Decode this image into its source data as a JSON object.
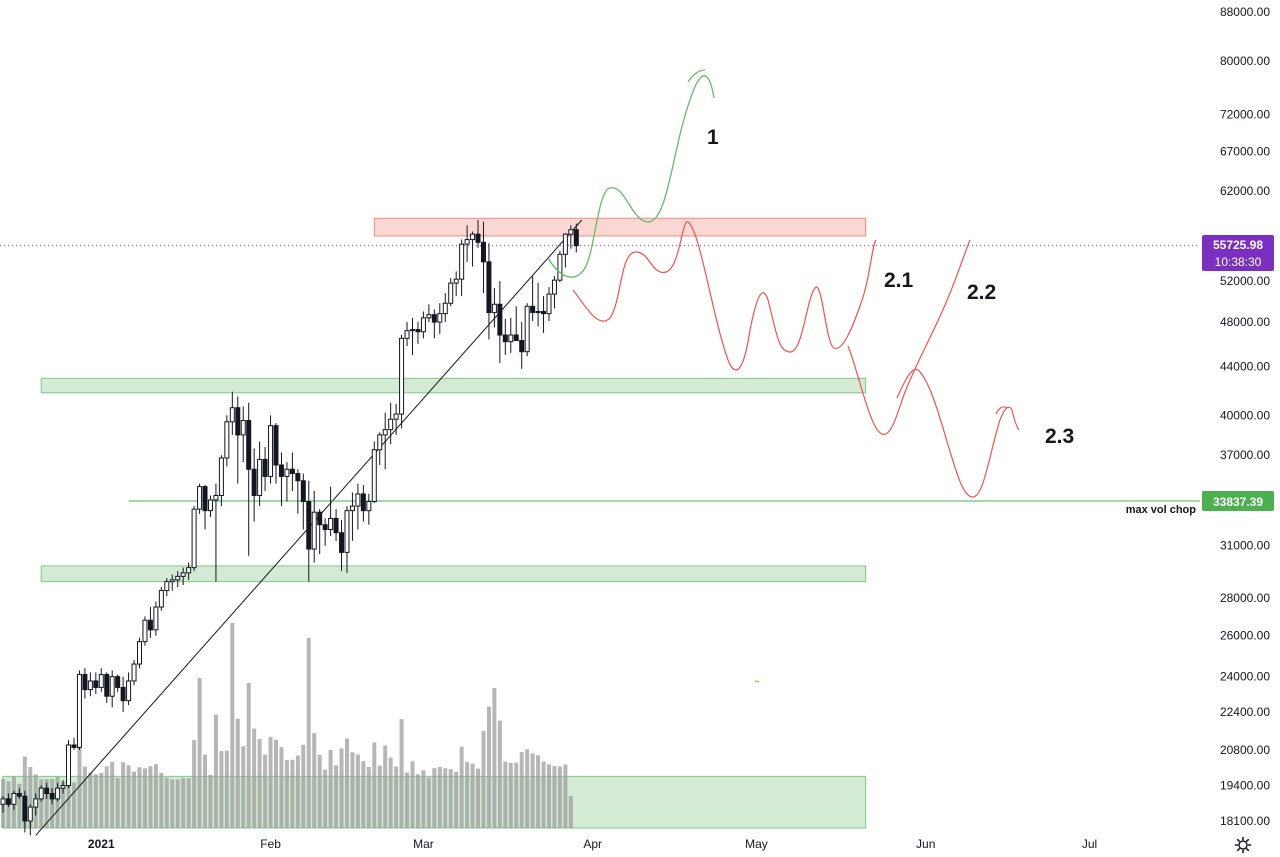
{
  "chart_data": {
    "type": "candlestick",
    "symbol_price_scale": "log",
    "price_axis_labels": [
      "88000.00",
      "80000.00",
      "72000.00",
      "67000.00",
      "62000.00",
      "52000.00",
      "48000.00",
      "44000.00",
      "40000.00",
      "37000.00",
      "31000.00",
      "28000.00",
      "26000.00",
      "24000.00",
      "22400.00",
      "20800.00",
      "19400.00",
      "18100.00"
    ],
    "price_axis_values": [
      88000,
      80000,
      72000,
      67000,
      62000,
      52000,
      48000,
      44000,
      40000,
      37000,
      31000,
      28000,
      26000,
      24000,
      22400,
      20800,
      19400,
      18100
    ],
    "time_axis_labels": [
      {
        "text": "2021",
        "date": "2021-01-01",
        "bold": true
      },
      {
        "text": "Feb",
        "date": "2021-02-01",
        "bold": false
      },
      {
        "text": "Mar",
        "date": "2021-03-01",
        "bold": false
      },
      {
        "text": "Apr",
        "date": "2021-04-01",
        "bold": false
      },
      {
        "text": "May",
        "date": "2021-05-01",
        "bold": false
      },
      {
        "text": "Jun",
        "date": "2021-06-01",
        "bold": false
      },
      {
        "text": "Jul",
        "date": "2021-07-01",
        "bold": false
      }
    ],
    "x_range": [
      "2020-12-14",
      "2021-07-20"
    ],
    "y_range": [
      17600,
      90000
    ],
    "first_candle_date": "2020-12-14",
    "candles": [
      [
        18700,
        19000,
        18400,
        18900
      ],
      [
        18900,
        19100,
        18600,
        18700
      ],
      [
        18700,
        19200,
        18500,
        19100
      ],
      [
        19100,
        19300,
        18900,
        19000
      ],
      [
        19000,
        19200,
        17700,
        18100
      ],
      [
        18100,
        18700,
        17600,
        18600
      ],
      [
        18600,
        19100,
        18300,
        18900
      ],
      [
        18900,
        19400,
        18800,
        19300
      ],
      [
        19300,
        19500,
        18900,
        19100
      ],
      [
        19100,
        19300,
        18700,
        18900
      ],
      [
        18900,
        19500,
        18800,
        19300
      ],
      [
        19300,
        19600,
        19100,
        19400
      ],
      [
        19400,
        21200,
        19300,
        21000
      ],
      [
        21000,
        21300,
        20800,
        20900
      ],
      [
        20900,
        24300,
        20800,
        24100
      ],
      [
        24100,
        24400,
        23000,
        23400
      ],
      [
        23400,
        24200,
        23100,
        23800
      ],
      [
        23800,
        24200,
        23200,
        23500
      ],
      [
        23500,
        24400,
        23300,
        24100
      ],
      [
        24100,
        24200,
        22800,
        23100
      ],
      [
        23100,
        24300,
        22600,
        24000
      ],
      [
        24000,
        24100,
        23300,
        23500
      ],
      [
        23500,
        24000,
        22400,
        22900
      ],
      [
        22900,
        24200,
        22700,
        23800
      ],
      [
        23800,
        24800,
        23600,
        24600
      ],
      [
        24600,
        25900,
        24400,
        25700
      ],
      [
        25700,
        27000,
        25500,
        26800
      ],
      [
        26800,
        27500,
        25900,
        26300
      ],
      [
        26300,
        27800,
        26000,
        27500
      ],
      [
        27500,
        28600,
        27300,
        28400
      ],
      [
        28400,
        29100,
        28100,
        28900
      ],
      [
        28900,
        29300,
        28400,
        29000
      ],
      [
        29000,
        29500,
        28600,
        29200
      ],
      [
        29200,
        29700,
        28700,
        29400
      ],
      [
        29400,
        30000,
        29000,
        29700
      ],
      [
        29700,
        33500,
        29500,
        33300
      ],
      [
        33300,
        35000,
        33000,
        34800
      ],
      [
        34800,
        34900,
        32000,
        33200
      ],
      [
        33200,
        34200,
        32800,
        33900
      ],
      [
        33900,
        35000,
        28900,
        34200
      ],
      [
        34200,
        37000,
        33500,
        36800
      ],
      [
        36800,
        40000,
        36200,
        39500
      ],
      [
        39500,
        41900,
        38500,
        40600
      ],
      [
        40600,
        41500,
        35000,
        38500
      ],
      [
        38500,
        40700,
        36500,
        39600
      ],
      [
        39600,
        41000,
        30400,
        36000
      ],
      [
        36000,
        37500,
        32500,
        34200
      ],
      [
        34200,
        38000,
        33500,
        36700
      ],
      [
        36700,
        37600,
        34500,
        35500
      ],
      [
        35500,
        40000,
        35000,
        39200
      ],
      [
        39200,
        39400,
        35000,
        36300
      ],
      [
        36300,
        37200,
        33500,
        35500
      ],
      [
        35500,
        36500,
        33800,
        36000
      ],
      [
        36000,
        37200,
        34500,
        35700
      ],
      [
        35700,
        36000,
        33000,
        35200
      ],
      [
        35200,
        35700,
        32000,
        33800
      ],
      [
        33800,
        35200,
        28900,
        30800
      ],
      [
        30800,
        34500,
        30000,
        33100
      ],
      [
        33100,
        33300,
        30500,
        32300
      ],
      [
        32300,
        32700,
        31000,
        32000
      ],
      [
        32000,
        34800,
        31600,
        32700
      ],
      [
        32700,
        33300,
        31300,
        31800
      ],
      [
        31800,
        32600,
        29500,
        30600
      ],
      [
        30600,
        33500,
        29400,
        33200
      ],
      [
        33200,
        34400,
        31300,
        33500
      ],
      [
        33500,
        35000,
        32000,
        34300
      ],
      [
        34300,
        34900,
        32500,
        33200
      ],
      [
        33200,
        34300,
        32300,
        33800
      ],
      [
        33800,
        38000,
        33700,
        37400
      ],
      [
        37400,
        38700,
        36300,
        38500
      ],
      [
        38500,
        40200,
        36000,
        38900
      ],
      [
        38900,
        41000,
        37800,
        39700
      ],
      [
        39700,
        40900,
        38500,
        40100
      ],
      [
        40100,
        46800,
        39000,
        46500
      ],
      [
        46500,
        48000,
        45800,
        47200
      ],
      [
        47200,
        48400,
        45000,
        47300
      ],
      [
        47300,
        48000,
        46000,
        47100
      ],
      [
        47100,
        49000,
        46500,
        48400
      ],
      [
        48400,
        49700,
        48000,
        48700
      ],
      [
        48700,
        49200,
        46500,
        48000
      ],
      [
        48000,
        49800,
        46900,
        48800
      ],
      [
        48800,
        50800,
        48000,
        49800
      ],
      [
        49800,
        52300,
        49500,
        51800
      ],
      [
        51800,
        53000,
        50500,
        52200
      ],
      [
        52200,
        56400,
        50500,
        55900
      ],
      [
        55900,
        58000,
        54000,
        56400
      ],
      [
        56400,
        57300,
        53500,
        57000
      ],
      [
        57000,
        58600,
        55500,
        56100
      ],
      [
        56100,
        58400,
        50800,
        54000
      ],
      [
        54000,
        56000,
        46400,
        48900
      ],
      [
        48900,
        51300,
        47500,
        49700
      ],
      [
        49700,
        52000,
        44300,
        46800
      ],
      [
        46800,
        48300,
        45000,
        46200
      ],
      [
        46200,
        48400,
        45200,
        46800
      ],
      [
        46800,
        49500,
        46300,
        46300
      ],
      [
        46300,
        48000,
        43800,
        45300
      ],
      [
        45300,
        49800,
        44900,
        49500
      ],
      [
        49500,
        52500,
        48100,
        48900
      ],
      [
        48900,
        51800,
        47600,
        49000
      ],
      [
        49000,
        50500,
        47000,
        48800
      ],
      [
        48800,
        51400,
        48100,
        50700
      ],
      [
        50700,
        52500,
        49300,
        52100
      ],
      [
        52100,
        55200,
        51900,
        54800
      ],
      [
        54800,
        57100,
        53400,
        57000
      ],
      [
        57000,
        58000,
        55400,
        57500
      ],
      [
        57500,
        58200,
        55000,
        55726
      ]
    ],
    "volume_bars_count": 105,
    "horizontal_line": {
      "label": "max vol chop",
      "price": 33837.39,
      "price_text": "33837.39",
      "color": "#4caf50"
    },
    "last_price": {
      "price_text": "55725.98",
      "countdown": "10:38:30",
      "price": 55725.98,
      "color": "#7b2fbe"
    },
    "zones": [
      {
        "name": "resistance-zone",
        "color": "#f28b82",
        "y_low": 56800,
        "y_high": 58800,
        "x_start": "2021-02-20",
        "x_end": "2021-05-21"
      },
      {
        "name": "support-zone-upper",
        "color": "#81c784",
        "y_low": 41800,
        "y_high": 43000,
        "x_start": "2020-12-21",
        "x_end": "2021-05-21"
      },
      {
        "name": "support-zone-lower",
        "color": "#81c784",
        "y_low": 28900,
        "y_high": 29800,
        "x_start": "2020-12-21",
        "x_end": "2021-05-21"
      },
      {
        "name": "volume-zone",
        "color": "#81c784",
        "y_low": 17600,
        "y_high": 19750,
        "x_start": "2020-12-14",
        "x_end": "2021-05-21"
      }
    ],
    "trendline": {
      "points": [
        [
          "2020-12-20",
          17600
        ],
        [
          "2021-03-30",
          58600
        ]
      ],
      "color": "#131722"
    },
    "scenario_labels": [
      "1",
      "2.1",
      "2.2",
      "2.3"
    ],
    "scenario_colors": {
      "bullish": "#66bb6a",
      "bearish": "#ef5350"
    }
  },
  "settings_icon": "gear-icon"
}
